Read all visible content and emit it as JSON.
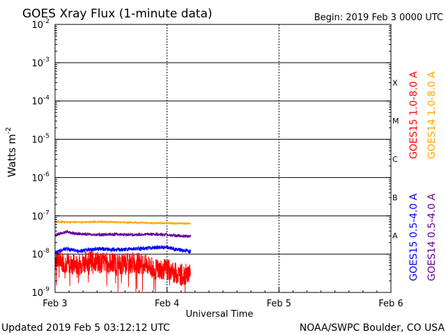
{
  "chart_data": {
    "type": "line",
    "title": "GOES Xray Flux (1-minute data)",
    "begin_label": "Begin:  2019 Feb 3 0000 UTC",
    "xlabel": "Universal Time",
    "ylabel": "Watts m",
    "ylabel_sup": "-2",
    "y_scale": "log",
    "ylim": [
      1e-09,
      0.01
    ],
    "x_unit": "days since Feb 3 0000 UTC",
    "xlim": [
      0,
      3
    ],
    "x_ticks": [
      {
        "label": "Feb 3",
        "value": 0
      },
      {
        "label": "Feb 4",
        "value": 1
      },
      {
        "label": "Feb 5",
        "value": 2
      },
      {
        "label": "Feb 6",
        "value": 3
      }
    ],
    "y_ticks": [
      {
        "base": "10",
        "exp": "-9",
        "value": 1e-09
      },
      {
        "base": "10",
        "exp": "-8",
        "value": 1e-08
      },
      {
        "base": "10",
        "exp": "-7",
        "value": 1e-07
      },
      {
        "base": "10",
        "exp": "-6",
        "value": 1e-06
      },
      {
        "base": "10",
        "exp": "-5",
        "value": 1e-05
      },
      {
        "base": "10",
        "exp": "-4",
        "value": 0.0001
      },
      {
        "base": "10",
        "exp": "-3",
        "value": 0.001
      },
      {
        "base": "10",
        "exp": "-2",
        "value": 0.01
      }
    ],
    "flare_classes": [
      {
        "label": "A",
        "lower": 1e-08
      },
      {
        "label": "B",
        "lower": 1e-07
      },
      {
        "label": "C",
        "lower": 1e-06
      },
      {
        "label": "M",
        "lower": 1e-05
      },
      {
        "label": "X",
        "lower": 0.0001
      }
    ],
    "grid": true,
    "data_end_x": 1.21,
    "series": [
      {
        "name": "GOES15 1.0-8.0 A",
        "color": "#ff0000",
        "x": [
          0,
          0.1,
          0.2,
          0.3,
          0.4,
          0.5,
          0.6,
          0.7,
          0.8,
          0.9,
          1.0,
          1.1,
          1.21
        ],
        "y": [
          7e-09,
          6e-09,
          5e-09,
          7e-09,
          6e-09,
          6e-09,
          5.5e-09,
          6e-09,
          5.5e-09,
          4e-09,
          4e-09,
          3e-09,
          3e-09
        ]
      },
      {
        "name": "GOES14 1.0-8.0 A",
        "color": "#ffa500",
        "x": [
          0,
          0.2,
          0.4,
          0.6,
          0.8,
          1.0,
          1.21
        ],
        "y": [
          7e-08,
          6.8e-08,
          7e-08,
          6.8e-08,
          6.6e-08,
          6.4e-08,
          6.3e-08
        ]
      },
      {
        "name": "GOES15 0.5-4.0 A",
        "color": "#0000ff",
        "x": [
          0,
          0.1,
          0.2,
          0.3,
          0.4,
          0.5,
          0.6,
          0.7,
          0.8,
          0.9,
          1.0,
          1.1,
          1.21
        ],
        "y": [
          1.1e-08,
          1.4e-08,
          1.2e-08,
          1.3e-08,
          1.4e-08,
          1.3e-08,
          1.3e-08,
          1.4e-08,
          1.4e-08,
          1.5e-08,
          1.5e-08,
          1.3e-08,
          1.2e-08
        ]
      },
      {
        "name": "GOES14 0.5-4.0 A",
        "color": "#660099",
        "x": [
          0,
          0.1,
          0.2,
          0.3,
          0.4,
          0.5,
          0.6,
          0.7,
          0.8,
          0.9,
          1.0,
          1.1,
          1.21
        ],
        "y": [
          3.2e-08,
          3.8e-08,
          3.4e-08,
          3.3e-08,
          3.2e-08,
          3.3e-08,
          3.3e-08,
          3.2e-08,
          3.3e-08,
          3.3e-08,
          3.2e-08,
          3e-08,
          2.9e-08
        ]
      }
    ]
  },
  "footer": {
    "updated": "Updated 2019 Feb  5 03:12:12 UTC",
    "credit": "NOAA/SWPC Boulder, CO USA"
  }
}
